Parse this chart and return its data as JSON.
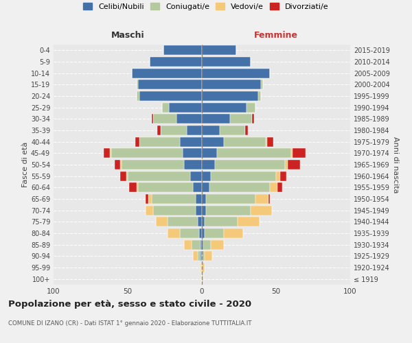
{
  "age_groups": [
    "100+",
    "95-99",
    "90-94",
    "85-89",
    "80-84",
    "75-79",
    "70-74",
    "65-69",
    "60-64",
    "55-59",
    "50-54",
    "45-49",
    "40-44",
    "35-39",
    "30-34",
    "25-29",
    "20-24",
    "15-19",
    "10-14",
    "5-9",
    "0-4"
  ],
  "birth_years": [
    "≤ 1919",
    "1920-1924",
    "1925-1929",
    "1930-1934",
    "1935-1939",
    "1940-1944",
    "1945-1949",
    "1950-1954",
    "1955-1959",
    "1960-1964",
    "1965-1969",
    "1970-1974",
    "1975-1979",
    "1980-1984",
    "1985-1989",
    "1990-1994",
    "1995-1999",
    "2000-2004",
    "2005-2009",
    "2010-2014",
    "2015-2019"
  ],
  "colors": {
    "celibi": "#4472a8",
    "coniugati": "#b5c9a0",
    "vedovi": "#f5c97a",
    "divorziati": "#cc2222"
  },
  "maschi": {
    "celibi": [
      0,
      0,
      1,
      1,
      2,
      3,
      4,
      4,
      6,
      8,
      12,
      13,
      15,
      10,
      17,
      22,
      42,
      43,
      47,
      35,
      26
    ],
    "coniugati": [
      0,
      0,
      2,
      6,
      13,
      20,
      29,
      30,
      37,
      42,
      42,
      48,
      27,
      18,
      16,
      5,
      2,
      1,
      0,
      0,
      0
    ],
    "vedovi": [
      0,
      1,
      3,
      5,
      8,
      8,
      5,
      2,
      1,
      1,
      1,
      1,
      0,
      0,
      0,
      0,
      0,
      0,
      0,
      0,
      0
    ],
    "divorziati": [
      0,
      0,
      0,
      0,
      0,
      0,
      0,
      2,
      5,
      4,
      4,
      4,
      3,
      2,
      1,
      0,
      0,
      0,
      0,
      0,
      0
    ]
  },
  "femmine": {
    "celibi": [
      0,
      0,
      0,
      1,
      2,
      2,
      3,
      3,
      5,
      6,
      9,
      10,
      15,
      12,
      19,
      30,
      38,
      40,
      46,
      33,
      23
    ],
    "coniugati": [
      0,
      0,
      2,
      5,
      13,
      22,
      30,
      33,
      41,
      44,
      47,
      50,
      28,
      17,
      15,
      6,
      2,
      1,
      0,
      0,
      0
    ],
    "vedovi": [
      1,
      2,
      5,
      9,
      13,
      15,
      14,
      9,
      5,
      3,
      2,
      1,
      1,
      0,
      0,
      0,
      0,
      0,
      0,
      0,
      0
    ],
    "divorziati": [
      0,
      0,
      0,
      0,
      0,
      0,
      0,
      1,
      3,
      4,
      8,
      9,
      4,
      2,
      1,
      0,
      0,
      0,
      0,
      0,
      0
    ]
  },
  "xlim": 100,
  "title": "Popolazione per età, sesso e stato civile - 2020",
  "subtitle": "COMUNE DI IZANO (CR) - Dati ISTAT 1° gennaio 2020 - Elaborazione TUTTITALIA.IT",
  "legend_labels": [
    "Celibi/Nubili",
    "Coniugati/e",
    "Vedovi/e",
    "Divorziati/e"
  ],
  "left_label": "Maschi",
  "right_label": "Femmine",
  "ylabel_left": "Fasce di età",
  "ylabel_right": "Anni di nascita",
  "bg_color": "#f0f0f0",
  "plot_bg": "#e8e8e8"
}
